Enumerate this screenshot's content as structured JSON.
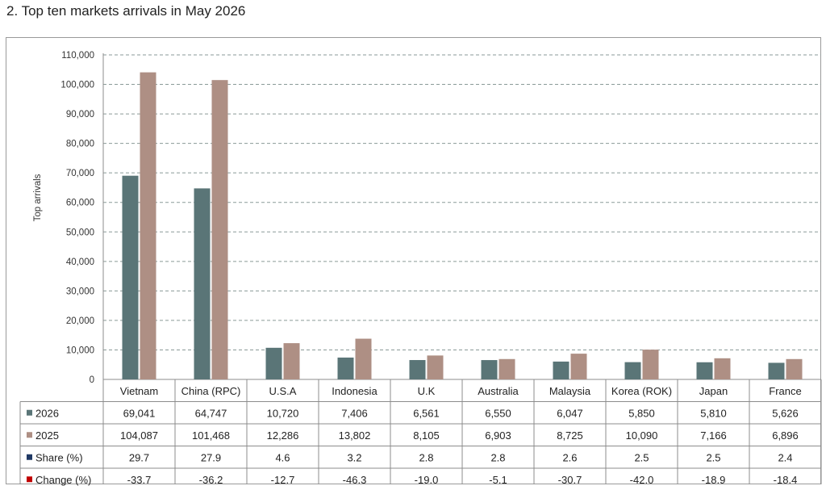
{
  "title": "2. Top ten markets arrivals in May 2026",
  "chart_data": {
    "type": "bar",
    "title": "2. Top ten markets arrivals in May 2026",
    "xlabel": "",
    "ylabel": "Top arrivals",
    "ylim": [
      0,
      110000
    ],
    "yticks": [
      "0",
      "10,000",
      "20,000",
      "30,000",
      "40,000",
      "50,000",
      "60,000",
      "70,000",
      "80,000",
      "90,000",
      "100,000",
      "110,000"
    ],
    "grid": true,
    "categories": [
      "Vietnam",
      "China (RPC)",
      "U.S.A",
      "Indonesia",
      "U.K",
      "Australia",
      "Malaysia",
      "Korea (ROK)",
      "Japan",
      "France"
    ],
    "series": [
      {
        "name": "2026",
        "values": [
          69041,
          64747,
          10720,
          7406,
          6561,
          6550,
          6047,
          5850,
          5810,
          5626
        ],
        "color": "#5a7577"
      },
      {
        "name": "2025",
        "values": [
          104087,
          101468,
          12286,
          13802,
          8105,
          6903,
          8725,
          10090,
          7166,
          6896
        ],
        "color": "#ae8f84"
      }
    ],
    "table": {
      "rows": [
        {
          "name": "2026",
          "color": "#5a7577",
          "cells": [
            "69,041",
            "64,747",
            "10,720",
            "7,406",
            "6,561",
            "6,550",
            "6,047",
            "5,850",
            "5,810",
            "5,626"
          ]
        },
        {
          "name": "2025",
          "color": "#ae8f84",
          "cells": [
            "104,087",
            "101,468",
            "12,286",
            "13,802",
            "8,105",
            "6,903",
            "8,725",
            "10,090",
            "7,166",
            "6,896"
          ]
        },
        {
          "name": "Share (%)",
          "color": "#1f3864",
          "cells": [
            "29.7",
            "27.9",
            "4.6",
            "3.2",
            "2.8",
            "2.8",
            "2.6",
            "2.5",
            "2.5",
            "2.4"
          ]
        },
        {
          "name": "Change (%)",
          "color": "#c00000",
          "cells": [
            "-33.7",
            "-36.2",
            "-12.7",
            "-46.3",
            "-19.0",
            "-5.1",
            "-30.7",
            "-42.0",
            "-18.9",
            "-18.4"
          ]
        }
      ]
    }
  }
}
